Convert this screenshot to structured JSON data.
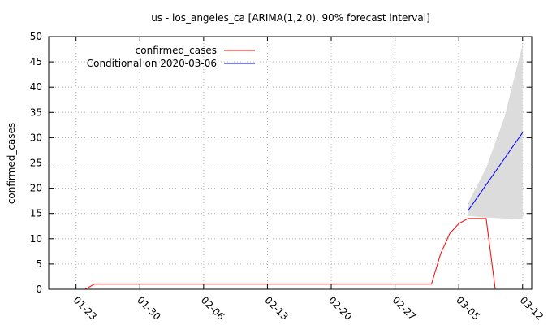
{
  "chart_data": {
    "type": "line",
    "title": "us - los_angeles_ca [ARIMA(1,2,0), 90% forecast interval]",
    "xlabel": "",
    "ylabel": "confirmed_cases",
    "ylim": [
      0,
      50
    ],
    "yticks": [
      0,
      5,
      10,
      15,
      20,
      25,
      30,
      35,
      40,
      45,
      50
    ],
    "xlim_days": [
      "2020-01-20",
      "2020-03-13"
    ],
    "xticks": [
      {
        "date": "2020-01-23",
        "label": "01-23"
      },
      {
        "date": "2020-01-30",
        "label": "01-30"
      },
      {
        "date": "2020-02-06",
        "label": "02-06"
      },
      {
        "date": "2020-02-13",
        "label": "02-13"
      },
      {
        "date": "2020-02-20",
        "label": "02-20"
      },
      {
        "date": "2020-02-27",
        "label": "02-27"
      },
      {
        "date": "2020-03-05",
        "label": "03-05"
      },
      {
        "date": "2020-03-12",
        "label": "03-12"
      }
    ],
    "grid": true,
    "legend_position": "top-left",
    "series": [
      {
        "name": "confirmed_cases",
        "color": "#ff0000",
        "points": [
          [
            "2020-01-24",
            0
          ],
          [
            "2020-01-25",
            1
          ],
          [
            "2020-01-26",
            1
          ],
          [
            "2020-01-27",
            1
          ],
          [
            "2020-01-28",
            1
          ],
          [
            "2020-01-29",
            1
          ],
          [
            "2020-01-30",
            1
          ],
          [
            "2020-01-31",
            1
          ],
          [
            "2020-02-01",
            1
          ],
          [
            "2020-02-02",
            1
          ],
          [
            "2020-02-03",
            1
          ],
          [
            "2020-02-04",
            1
          ],
          [
            "2020-02-05",
            1
          ],
          [
            "2020-02-06",
            1
          ],
          [
            "2020-02-07",
            1
          ],
          [
            "2020-02-08",
            1
          ],
          [
            "2020-02-09",
            1
          ],
          [
            "2020-02-10",
            1
          ],
          [
            "2020-02-11",
            1
          ],
          [
            "2020-02-12",
            1
          ],
          [
            "2020-02-13",
            1
          ],
          [
            "2020-02-14",
            1
          ],
          [
            "2020-02-15",
            1
          ],
          [
            "2020-02-16",
            1
          ],
          [
            "2020-02-17",
            1
          ],
          [
            "2020-02-18",
            1
          ],
          [
            "2020-02-19",
            1
          ],
          [
            "2020-02-20",
            1
          ],
          [
            "2020-02-21",
            1
          ],
          [
            "2020-02-22",
            1
          ],
          [
            "2020-02-23",
            1
          ],
          [
            "2020-02-24",
            1
          ],
          [
            "2020-02-25",
            1
          ],
          [
            "2020-02-26",
            1
          ],
          [
            "2020-02-27",
            1
          ],
          [
            "2020-02-28",
            1
          ],
          [
            "2020-02-29",
            1
          ],
          [
            "2020-03-01",
            1
          ],
          [
            "2020-03-02",
            1
          ],
          [
            "2020-03-03",
            7
          ],
          [
            "2020-03-04",
            11
          ],
          [
            "2020-03-05",
            13
          ],
          [
            "2020-03-06",
            14
          ],
          [
            "2020-03-07",
            14
          ],
          [
            "2020-03-08",
            14
          ],
          [
            "2020-03-09",
            0
          ]
        ]
      },
      {
        "name": "Conditional on 2020-03-06",
        "color": "#0000ff",
        "points": [
          [
            "2020-03-06",
            15.5
          ],
          [
            "2020-03-12",
            31
          ]
        ]
      }
    ],
    "forecast_interval": {
      "color": "#dcdcdc",
      "upper": [
        [
          "2020-03-06",
          17
        ],
        [
          "2020-03-08",
          24
        ],
        [
          "2020-03-10",
          34
        ],
        [
          "2020-03-12",
          48.5
        ]
      ],
      "lower": [
        [
          "2020-03-06",
          14.5
        ],
        [
          "2020-03-08",
          14.2
        ],
        [
          "2020-03-10",
          14
        ],
        [
          "2020-03-12",
          13.8
        ]
      ]
    }
  }
}
